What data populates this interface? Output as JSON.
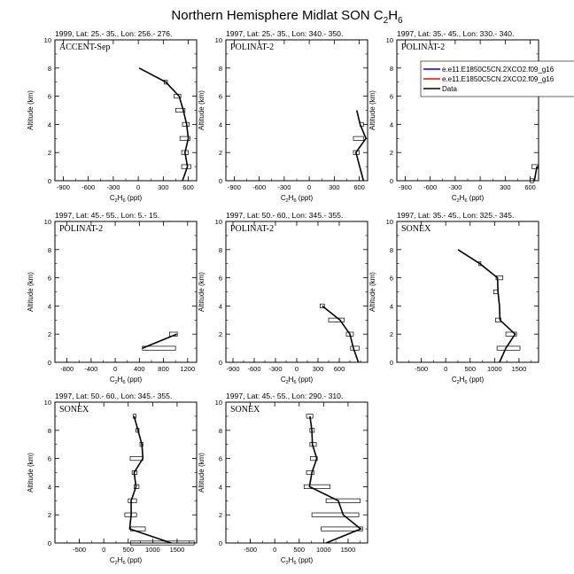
{
  "title_main": "Northern Hemisphere Midlat SON C",
  "title_sub1": "2",
  "title_h": "H",
  "title_sub2": "6",
  "legend": {
    "entries": [
      {
        "label": "e.e11.E1850C5CN.2XCO2.f09_g16",
        "color": "#0000ff"
      },
      {
        "label": "e.e11.E1850C5CN.2XCO2.f09_g16",
        "color": "#ff0000"
      },
      {
        "label": "Data",
        "color": "#000000"
      }
    ]
  },
  "chart_data": [
    {
      "type": "line",
      "subtitle": "1999, Lat: 25.- 35., Lon: 256.- 276.",
      "campaign": "ACCENT-Sep",
      "ylabel": "Altitude (km)",
      "xlabel": "C2H6 (ppt)",
      "xlim": [
        -1000,
        700
      ],
      "ylim": [
        0,
        10
      ],
      "xticks": [
        -900,
        -600,
        -300,
        0,
        300,
        600
      ],
      "yticks": [
        0,
        2,
        4,
        6,
        8,
        10
      ],
      "data": [
        {
          "y": 0,
          "x": 530,
          "lo": null,
          "hi": null
        },
        {
          "y": 0.5,
          "x": 560,
          "lo": null,
          "hi": null
        },
        {
          "y": 1,
          "x": 590,
          "lo": 520,
          "hi": 630
        },
        {
          "y": 2,
          "x": 560,
          "lo": 520,
          "hi": 600
        },
        {
          "y": 3,
          "x": 600,
          "lo": 500,
          "hi": 620
        },
        {
          "y": 4,
          "x": 580,
          "lo": 530,
          "hi": 610
        },
        {
          "y": 5,
          "x": 540,
          "lo": 450,
          "hi": 560
        },
        {
          "y": 6,
          "x": 490,
          "lo": 430,
          "hi": 510
        },
        {
          "y": 7,
          "x": 330,
          "lo": 310,
          "hi": 350
        },
        {
          "y": 8,
          "x": 10,
          "lo": null,
          "hi": null
        }
      ]
    },
    {
      "type": "line",
      "subtitle": "1997, Lat: 25.- 35., Lon: 340.- 350.",
      "campaign": "POLINAT-2",
      "ylabel": "Altitude (km)",
      "xlabel": "C2H6 (ppt)",
      "xlim": [
        -1000,
        700
      ],
      "ylim": [
        0,
        10
      ],
      "xticks": [
        -900,
        -600,
        -300,
        0,
        300,
        600
      ],
      "yticks": [
        0,
        2,
        4,
        6,
        8,
        10
      ],
      "data": [
        {
          "y": 0,
          "x": 650,
          "lo": null,
          "hi": null
        },
        {
          "y": 2,
          "x": 560,
          "lo": 530,
          "hi": 600
        },
        {
          "y": 3,
          "x": 680,
          "lo": 530,
          "hi": 650
        },
        {
          "y": 4,
          "x": 610,
          "lo": 610,
          "hi": 650
        },
        {
          "y": 5,
          "x": 570,
          "lo": null,
          "hi": null
        }
      ]
    },
    {
      "type": "line",
      "subtitle": "1997, Lat: 35.- 45., Lon: 330.- 340.",
      "campaign": "POLINAT-2",
      "ylabel": "Altitude (km)",
      "xlabel": "C2H6 (ppt)",
      "xlim": [
        -1000,
        700
      ],
      "ylim": [
        0,
        10
      ],
      "xticks": [
        -900,
        -600,
        -300,
        0,
        300,
        600
      ],
      "yticks": [
        0,
        2,
        4,
        6,
        8,
        10
      ],
      "show_legend": true,
      "data": [
        {
          "y": 0,
          "x": 650,
          "lo": 600,
          "hi": 640
        },
        {
          "y": 1,
          "x": 680,
          "lo": 620,
          "hi": 690
        }
      ]
    },
    {
      "type": "line",
      "subtitle": "1997, Lat: 45.- 55., Lon: 5.- 15.",
      "campaign": "POLINAT-2",
      "ylabel": "Altitude (km)",
      "xlabel": "C2H6 (ppt)",
      "xlim": [
        -1000,
        1350
      ],
      "ylim": [
        0,
        10
      ],
      "xticks": [
        -800,
        -400,
        0,
        400,
        800,
        1200
      ],
      "yticks": [
        0,
        2,
        4,
        6,
        8,
        10
      ],
      "data": [
        {
          "y": 1,
          "x": 450,
          "lo": 450,
          "hi": 1000
        },
        {
          "y": 2,
          "x": 1020,
          "lo": 900,
          "hi": 1030
        }
      ]
    },
    {
      "type": "line",
      "subtitle": "1997, Lat: 50.- 60., Lon: 345.- 355.",
      "campaign": "POLINAT-2",
      "ylabel": "Altitude (km)",
      "xlabel": "C2H6 (ppt)",
      "xlim": [
        -1000,
        1000
      ],
      "ylim": [
        0,
        10
      ],
      "xticks": [
        -900,
        -600,
        -300,
        0,
        300,
        600
      ],
      "yticks": [
        0,
        2,
        4,
        6,
        8,
        10
      ],
      "data": [
        {
          "y": 0,
          "x": 870,
          "lo": null,
          "hi": null
        },
        {
          "y": 1,
          "x": 800,
          "lo": 760,
          "hi": 880
        },
        {
          "y": 2,
          "x": 750,
          "lo": 700,
          "hi": 800
        },
        {
          "y": 3,
          "x": 610,
          "lo": 450,
          "hi": 670
        },
        {
          "y": 4,
          "x": 360,
          "lo": 330,
          "hi": 390
        }
      ]
    },
    {
      "type": "line",
      "subtitle": "1997, Lat: 35.- 45., Lon: 325.- 345.",
      "campaign": "SONEX",
      "ylabel": "Altitude (km)",
      "xlabel": "C2H6 (ppt)",
      "xlim": [
        -1000,
        1900
      ],
      "ylim": [
        0,
        10
      ],
      "xticks": [
        -500,
        0,
        500,
        1000,
        1500
      ],
      "yticks": [
        0,
        2,
        4,
        6,
        8,
        10
      ],
      "data": [
        {
          "y": 0,
          "x": 1100,
          "lo": null,
          "hi": null
        },
        {
          "y": 1,
          "x": 1230,
          "lo": 1050,
          "hi": 1520
        },
        {
          "y": 2,
          "x": 1420,
          "lo": 1230,
          "hi": 1450
        },
        {
          "y": 3,
          "x": 1110,
          "lo": 1020,
          "hi": 1130
        },
        {
          "y": 4,
          "x": 1100,
          "lo": null,
          "hi": null
        },
        {
          "y": 5,
          "x": 1070,
          "lo": 980,
          "hi": 1070
        },
        {
          "y": 6,
          "x": 1060,
          "lo": 1030,
          "hi": 1170
        },
        {
          "y": 7,
          "x": 700,
          "lo": 680,
          "hi": 720
        },
        {
          "y": 8,
          "x": 250,
          "lo": null,
          "hi": null
        }
      ]
    },
    {
      "type": "line",
      "subtitle": "1997, Lat: 50.- 60., Lon: 345.- 355.",
      "campaign": "SONEX",
      "ylabel": "Altitude (km)",
      "xlabel": "C2H6 (ppt)",
      "xlim": [
        -1000,
        1900
      ],
      "ylim": [
        0,
        10
      ],
      "xticks": [
        -500,
        0,
        500,
        1000,
        1500
      ],
      "yticks": [
        0,
        2,
        4,
        6,
        8,
        10
      ],
      "data": [
        {
          "y": 0,
          "x": 1380,
          "lo": 550,
          "hi": 1850
        },
        {
          "y": 1,
          "x": 530,
          "lo": 550,
          "hi": 850
        },
        {
          "y": 2,
          "x": 560,
          "lo": 430,
          "hi": 670
        },
        {
          "y": 3,
          "x": 560,
          "lo": 500,
          "hi": 670
        },
        {
          "y": 4,
          "x": 660,
          "lo": 620,
          "hi": 720
        },
        {
          "y": 5,
          "x": 620,
          "lo": 580,
          "hi": 680
        },
        {
          "y": 6,
          "x": 800,
          "lo": 540,
          "hi": 800
        },
        {
          "y": 7,
          "x": 780,
          "lo": 740,
          "hi": 800
        },
        {
          "y": 8,
          "x": 700,
          "lo": 660,
          "hi": 720
        },
        {
          "y": 9,
          "x": 620,
          "lo": 600,
          "hi": 660
        }
      ]
    },
    {
      "type": "line",
      "subtitle": "1997, Lat: 45.- 55., Lon: 290.- 310.",
      "campaign": "SONEX",
      "ylabel": "Altitude (km)",
      "xlabel": "C2H6 (ppt)",
      "xlim": [
        -1000,
        1900
      ],
      "ylim": [
        0,
        10
      ],
      "xticks": [
        -500,
        0,
        500,
        1000,
        1500
      ],
      "yticks": [
        0,
        2,
        4,
        6,
        8,
        10
      ],
      "data": [
        {
          "y": 0,
          "x": 1050,
          "lo": null,
          "hi": null
        },
        {
          "y": 1,
          "x": 1760,
          "lo": 950,
          "hi": 1800
        },
        {
          "y": 2,
          "x": 1400,
          "lo": 760,
          "hi": 1720
        },
        {
          "y": 3,
          "x": 1300,
          "lo": 1050,
          "hi": 1750
        },
        {
          "y": 4,
          "x": 710,
          "lo": 600,
          "hi": 1130
        },
        {
          "y": 5,
          "x": 760,
          "lo": 650,
          "hi": 800
        },
        {
          "y": 6,
          "x": 860,
          "lo": 730,
          "hi": 870
        },
        {
          "y": 7,
          "x": 770,
          "lo": 720,
          "hi": 850
        },
        {
          "y": 8,
          "x": 760,
          "lo": 720,
          "hi": 810
        },
        {
          "y": 9,
          "x": 720,
          "lo": 650,
          "hi": 780
        }
      ]
    }
  ]
}
